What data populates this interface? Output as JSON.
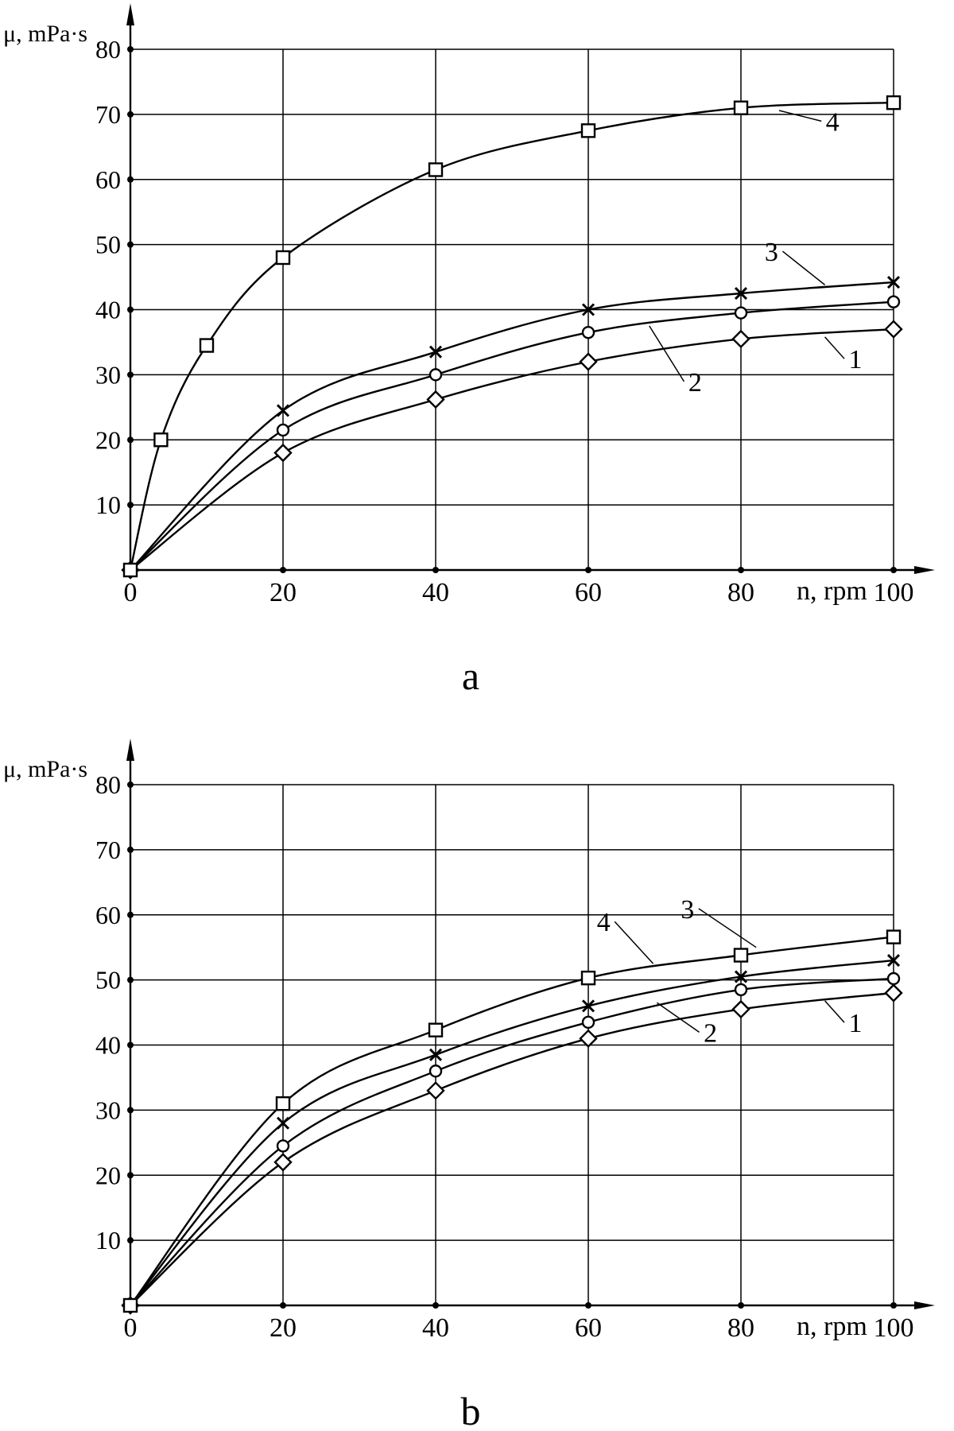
{
  "chart_data": [
    {
      "type": "line",
      "panel_label": "a",
      "xlabel": "n, rpm",
      "ylabel": "μ, mPa·s",
      "xlim": [
        0,
        100
      ],
      "ylim": [
        0,
        80
      ],
      "xticks": [
        0,
        20,
        40,
        60,
        80,
        100
      ],
      "yticks": [
        10,
        20,
        30,
        40,
        50,
        60,
        70,
        80
      ],
      "grid": true,
      "series": [
        {
          "name": "1",
          "marker": "diamond",
          "x": [
            0,
            20,
            40,
            60,
            80,
            100
          ],
          "y": [
            0,
            18,
            26.2,
            32,
            35.5,
            37
          ]
        },
        {
          "name": "2",
          "marker": "circle",
          "x": [
            0,
            20,
            40,
            60,
            80,
            100
          ],
          "y": [
            0,
            21.5,
            30,
            36.5,
            39.5,
            41.2
          ]
        },
        {
          "name": "3",
          "marker": "x",
          "x": [
            0,
            20,
            40,
            60,
            80,
            100
          ],
          "y": [
            0,
            24.5,
            33.5,
            40,
            42.5,
            44.2
          ]
        },
        {
          "name": "4",
          "marker": "square",
          "x": [
            0,
            4,
            10,
            20,
            40,
            60,
            80,
            100
          ],
          "y": [
            0,
            20,
            34.5,
            48,
            61.5,
            67.5,
            71,
            71.8
          ]
        }
      ],
      "annotations": [
        {
          "text": "4",
          "series": "4",
          "at": [
            92,
            67.5
          ],
          "points_to": [
            85,
            70.6
          ]
        },
        {
          "text": "3",
          "series": "3",
          "at": [
            84,
            47.5
          ],
          "points_to": [
            91,
            43.8
          ]
        },
        {
          "text": "2",
          "series": "2",
          "at": [
            74,
            27.5
          ],
          "points_to": [
            68,
            37.5
          ]
        },
        {
          "text": "1",
          "series": "1",
          "at": [
            95,
            31
          ],
          "points_to": [
            91,
            35.8
          ]
        }
      ]
    },
    {
      "type": "line",
      "panel_label": "b",
      "xlabel": "n, rpm",
      "ylabel": "μ, mPa·s",
      "xlim": [
        0,
        100
      ],
      "ylim": [
        0,
        80
      ],
      "xticks": [
        0,
        20,
        40,
        60,
        80,
        100
      ],
      "yticks": [
        10,
        20,
        30,
        40,
        50,
        60,
        70,
        80
      ],
      "grid": true,
      "series": [
        {
          "name": "1",
          "marker": "diamond",
          "x": [
            0,
            20,
            40,
            60,
            80,
            100
          ],
          "y": [
            0,
            22,
            33,
            41,
            45.5,
            48
          ]
        },
        {
          "name": "2",
          "marker": "circle",
          "x": [
            0,
            20,
            40,
            60,
            80,
            100
          ],
          "y": [
            0,
            24.5,
            36,
            43.5,
            48.5,
            50.2
          ]
        },
        {
          "name": "3",
          "marker": "x",
          "x": [
            0,
            20,
            40,
            60,
            80,
            100
          ],
          "y": [
            0,
            28,
            38.5,
            46,
            50.5,
            53
          ]
        },
        {
          "name": "4",
          "marker": "square",
          "x": [
            0,
            20,
            40,
            60,
            80,
            100
          ],
          "y": [
            0,
            31,
            42.3,
            50.3,
            53.8,
            56.6
          ]
        }
      ],
      "annotations": [
        {
          "text": "4",
          "series": "4",
          "at": [
            62,
            57.5
          ],
          "points_to": [
            68.5,
            52.5
          ]
        },
        {
          "text": "3",
          "series": "3",
          "at": [
            73,
            59.5
          ],
          "points_to": [
            82,
            55
          ]
        },
        {
          "text": "2",
          "series": "2",
          "at": [
            76,
            40.5
          ],
          "points_to": [
            69,
            46.5
          ]
        },
        {
          "text": "1",
          "series": "1",
          "at": [
            95,
            42
          ],
          "points_to": [
            91,
            46.8
          ]
        }
      ]
    }
  ]
}
